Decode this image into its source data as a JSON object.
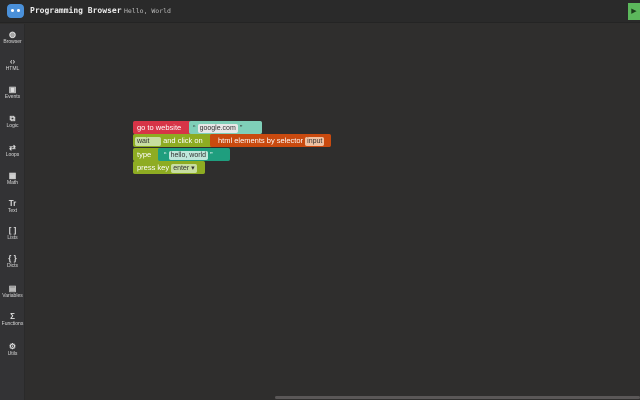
{
  "header": {
    "title": "Programming Browser",
    "project": "Hello, World",
    "run_icon": "play-icon"
  },
  "colors": {
    "website": "#d73447",
    "string": "#1f9e7e",
    "action": "#8eac22",
    "selector": "#c94a0f",
    "run": "#5cb85c"
  },
  "sidebar": {
    "items": [
      {
        "label": "Browser",
        "icon": "globe"
      },
      {
        "label": "HTML",
        "icon": "code"
      },
      {
        "label": "Events",
        "icon": "calendar"
      },
      {
        "label": "Logic",
        "icon": "logic"
      },
      {
        "label": "Loops",
        "icon": "repeat"
      },
      {
        "label": "Math",
        "icon": "calculator"
      },
      {
        "label": "Text",
        "icon": "text"
      },
      {
        "label": "Lists",
        "icon": "brackets"
      },
      {
        "label": "Dicts",
        "icon": "braces"
      },
      {
        "label": "Variables",
        "icon": "archive"
      },
      {
        "label": "Functions",
        "icon": "sigma"
      },
      {
        "label": "Utils",
        "icon": "gear"
      }
    ]
  },
  "blocks": {
    "go_to": {
      "label": "go to website",
      "url": "google.com",
      "open_quote": "“",
      "close_quote": "”"
    },
    "wait": {
      "field": "wait",
      "label": "and click on",
      "selector_label": "html elements by selector",
      "selector": "input"
    },
    "type": {
      "label": "type",
      "value": "hello, world",
      "open_quote": "“",
      "close_quote": "”"
    },
    "press": {
      "label": "press key",
      "key": "enter ▾"
    }
  }
}
